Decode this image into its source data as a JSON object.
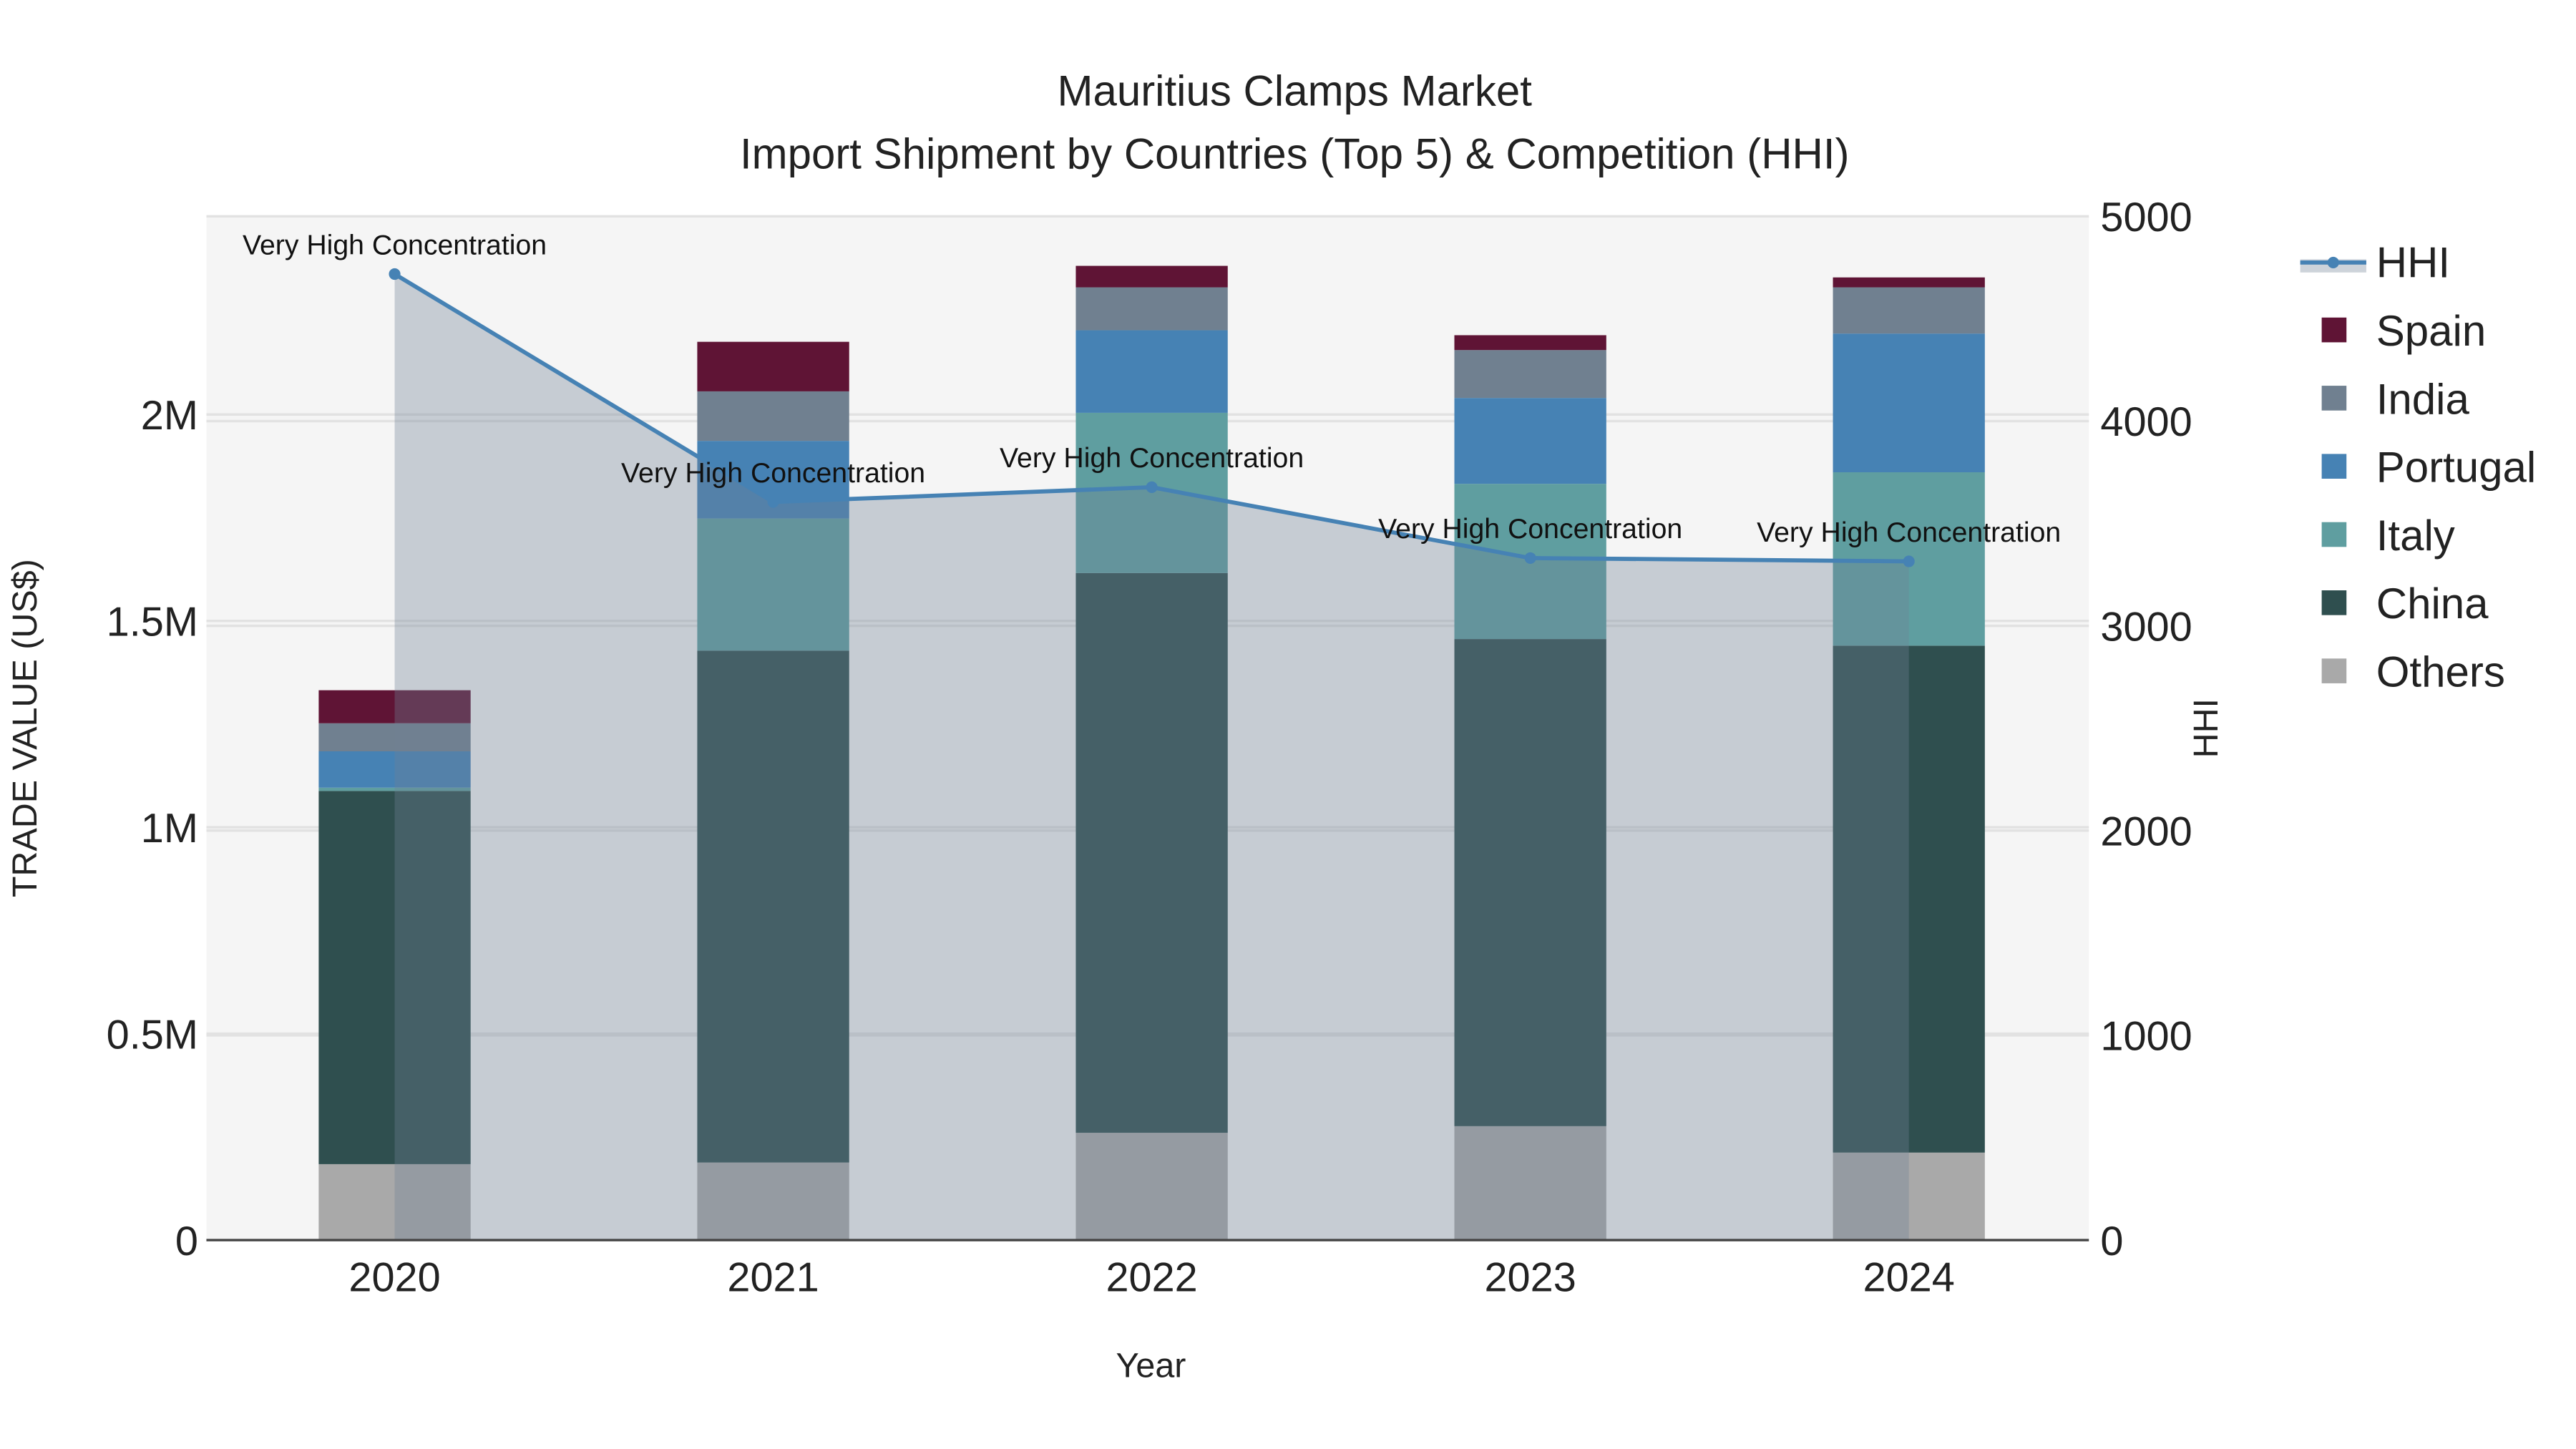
{
  "chart_data": {
    "type": "bar",
    "title": "Mauritius Clamps Market",
    "subtitle": "Import Shipment by Countries (Top 5) & Competition (HHI)",
    "xlabel": "Year",
    "ylabel": "TRADE VALUE (US$)",
    "y2label": "HHI",
    "categories": [
      "2020",
      "2021",
      "2022",
      "2023",
      "2024"
    ],
    "ylim": [
      0,
      2480000
    ],
    "y2lim": [
      0,
      5000
    ],
    "yticks": [
      {
        "v": 0,
        "label": "0"
      },
      {
        "v": 500000,
        "label": "0.5M"
      },
      {
        "v": 1000000,
        "label": "1M"
      },
      {
        "v": 1500000,
        "label": "1.5M"
      },
      {
        "v": 2000000,
        "label": "2M"
      }
    ],
    "y2ticks": [
      {
        "v": 0,
        "label": "0"
      },
      {
        "v": 1000,
        "label": "1000"
      },
      {
        "v": 2000,
        "label": "2000"
      },
      {
        "v": 3000,
        "label": "3000"
      },
      {
        "v": 4000,
        "label": "4000"
      },
      {
        "v": 5000,
        "label": "5000"
      }
    ],
    "grid": true,
    "legend_position": "right",
    "series": [
      {
        "name": "Others",
        "color": "#a9a9a9",
        "values": [
          184000,
          188000,
          260000,
          276000,
          212000
        ]
      },
      {
        "name": "China",
        "color": "#2f4f4f",
        "values": [
          904000,
          1240000,
          1356000,
          1180000,
          1228000
        ]
      },
      {
        "name": "Italy",
        "color": "#5f9ea0",
        "values": [
          8000,
          320000,
          388000,
          376000,
          420000
        ]
      },
      {
        "name": "Portugal",
        "color": "#4682b4",
        "values": [
          88000,
          188000,
          200000,
          208000,
          336000
        ]
      },
      {
        "name": "India",
        "color": "#708090",
        "values": [
          68000,
          120000,
          104000,
          116000,
          112000
        ]
      },
      {
        "name": "Spain",
        "color": "#5f1435",
        "values": [
          80000,
          120000,
          52000,
          36000,
          24000
        ]
      }
    ],
    "hhi": {
      "name": "HHI",
      "color": "#4682b4",
      "values": [
        4718,
        3605,
        3677,
        3331,
        3315
      ],
      "annotations": [
        "Very High Concentration",
        "Very High Concentration",
        "Very High Concentration",
        "Very High Concentration",
        "Very High Concentration"
      ]
    },
    "legend": [
      "HHI",
      "Spain",
      "India",
      "Portugal",
      "Italy",
      "China",
      "Others"
    ]
  }
}
